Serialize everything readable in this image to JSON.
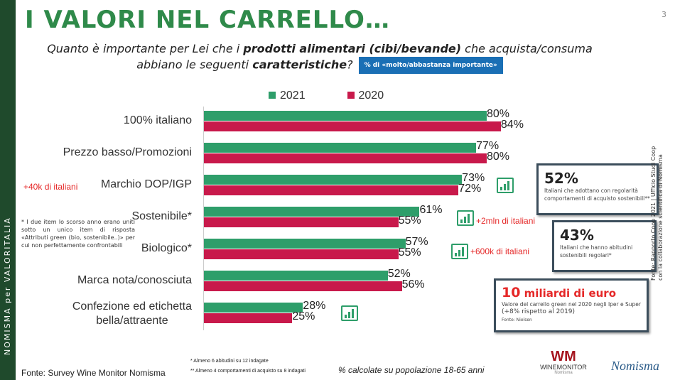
{
  "sidebar": {
    "label": "NOMISMA per VALORITALIA"
  },
  "header": {
    "title": "I VALORI NEL CARRELLO…",
    "page_number": "3",
    "question_1": "Quanto è importante per Lei che i ",
    "question_bold_1": "prodotti alimentari (cibi/bevande)",
    "question_2": " che acquista/consuma abbiano le seguenti ",
    "question_bold_2": "caratteristiche",
    "question_3": "?",
    "badge": "% di «molto/abbastanza importante»"
  },
  "chart_data": {
    "type": "bar",
    "orientation": "horizontal",
    "categories": [
      "100% italiano",
      "Prezzo basso/Promozioni",
      "Marchio DOP/IGP",
      "Sostenibile*",
      "Biologico*",
      "Marca nota/conosciuta",
      "Confezione ed etichetta bella/attraente"
    ],
    "series": [
      {
        "name": "2021",
        "color": "#2e9e6a",
        "values": [
          80,
          77,
          73,
          61,
          57,
          52,
          28
        ]
      },
      {
        "name": "2020",
        "color": "#c8194b",
        "values": [
          84,
          80,
          72,
          55,
          55,
          56,
          25
        ]
      }
    ],
    "value_suffix": "%",
    "legend": "top",
    "grid": false
  },
  "annotations": {
    "dop": "+40k di italiani",
    "sost": "+2mln di italiani",
    "bio": "+600k di italiani"
  },
  "note": "* I due item lo scorso anno erano uniti sotto un unico item di risposta «Attributi green (bio, sostenibile..)» per cui non perfettamente confrontabili",
  "boxes": [
    {
      "big": "52%",
      "text": "Italiani che adottano con regolarità comportamenti di acquisto sostenibili**"
    },
    {
      "big": "43%",
      "text": "Italiani che hanno abitudini sostenibili regolari*"
    },
    {
      "big": "10",
      "big_rest": " miliardi di euro",
      "text": "Valore del carrello green nel 2020 negli Iper e Super",
      "text2": "(+8% rispetto al 2019)",
      "source": "Fonte: Nielsen"
    }
  ],
  "side_source": {
    "line1": "Fonte: Rapporto Coop 2021 | Ufficio Studi Coop",
    "line2": "con la collaborazione scientifica di Nomisma"
  },
  "footer": {
    "source": "Fonte: Survey Wine Monitor Nomisma",
    "note1": "* Almeno 6 abitudini su 12 indagate",
    "note2": "** Almeno 4 comportamenti di acquisto su 8 indagati",
    "calc": "% calcolate su popolazione 18-65 anni",
    "logo1": "WINEMONITOR",
    "logo1_sub": "Nomisma",
    "logo2": "Nomisma"
  }
}
